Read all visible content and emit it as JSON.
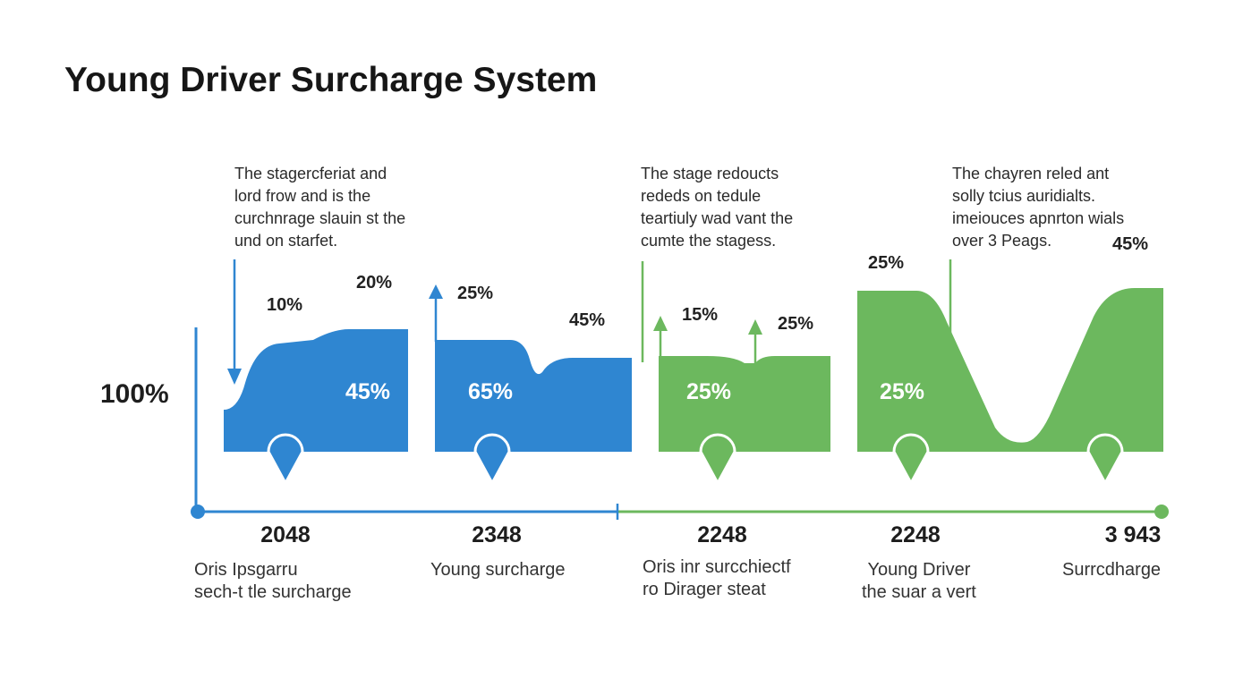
{
  "title": "Young Driver Surcharge System",
  "y_axis_label": "100%",
  "colors": {
    "blue": "#2f86d1",
    "green": "#6cb85e",
    "text": "#1c1c1c"
  },
  "notes": [
    "The stagercferiat and\nlord frow and is the\ncurchnrage slauin st the\nund on starfet.",
    "The stage redoucts\nrededs on tedule\nteartiuly wad vant the\ncumte the stagess.",
    "The chayren reled ant\nsolly tcius auridialts.\nimeiouces apnrton wials\nover 3 Peags."
  ],
  "outside_labels": [
    "10%",
    "20%",
    "25%",
    "45%",
    "15%",
    "25%",
    "25%",
    "45%"
  ],
  "stages": [
    {
      "inner_label": "45%",
      "year": "2048",
      "caption": "Oris Ipsgarru\nsech-t tle surcharge",
      "color": "blue"
    },
    {
      "inner_label": "65%",
      "year": "2348",
      "caption": "Young surcharge",
      "color": "blue"
    },
    {
      "inner_label": "25%",
      "year": "2248",
      "caption": "Oris inr surcchiectf\nro Dirager steat",
      "color": "green"
    },
    {
      "inner_label": "25%",
      "year": "2248",
      "caption": "Young Driver\nthe suar a vert",
      "color": "green"
    },
    {
      "inner_label": "",
      "year": "3 943",
      "caption": "Surrcdharge",
      "color": "green"
    }
  ]
}
